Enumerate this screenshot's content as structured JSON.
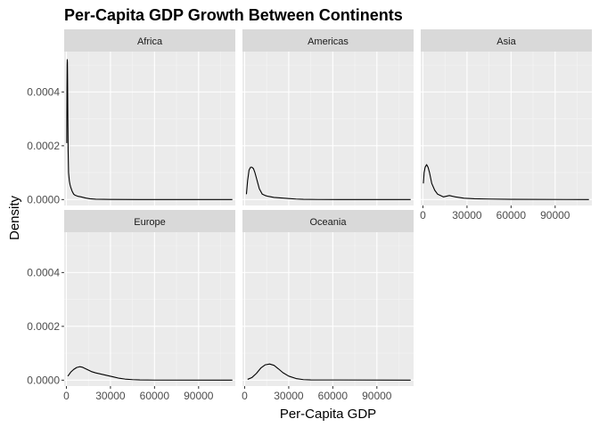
{
  "chart_data": {
    "type": "line",
    "title": "Per-Capita GDP Growth Between Continents",
    "xlabel": "Per-Capita GDP",
    "ylabel": "Density",
    "xlim": [
      -1500,
      115000
    ],
    "ylim": [
      -2.2e-05,
      0.00055
    ],
    "x_ticks": [
      0,
      30000,
      60000,
      90000
    ],
    "x_tick_labels": [
      "0",
      "30000",
      "60000",
      "90000"
    ],
    "y_ticks": [
      0,
      0.0002,
      0.0004
    ],
    "y_tick_labels": [
      "0.0000",
      "0.0002",
      "0.0004"
    ],
    "grid": true,
    "facets": [
      {
        "name": "Africa",
        "x": [
          241,
          300,
          400,
          500,
          600,
          700,
          800,
          900,
          1000,
          1200,
          1500,
          2000,
          2500,
          3000,
          4000,
          5000,
          6000,
          8000,
          10000,
          13000,
          16000,
          20000,
          30000,
          50000,
          113000
        ],
        "y": [
          0.00021,
          0.0003,
          0.00042,
          0.0005,
          0.00052,
          0.00051,
          0.00046,
          0.00038,
          0.0003,
          0.00018,
          0.0001,
          7e-05,
          5.5e-05,
          4.5e-05,
          3e-05,
          2e-05,
          1.6e-05,
          1.2e-05,
          1e-05,
          6e-06,
          3e-06,
          1.5e-06,
          5e-07,
          1e-07,
          0.0
        ]
      },
      {
        "name": "Americas",
        "x": [
          1200,
          2000,
          3000,
          4000,
          5000,
          6000,
          7000,
          8000,
          9000,
          10000,
          12000,
          14000,
          16000,
          20000,
          25000,
          30000,
          35000,
          40000,
          50000,
          113000
        ],
        "y": [
          2e-05,
          7e-05,
          0.00011,
          0.00012,
          0.00012,
          0.000115,
          0.0001,
          8e-05,
          6e-05,
          4e-05,
          2e-05,
          1.5e-05,
          1.2e-05,
          8e-06,
          6e-06,
          4e-06,
          2e-06,
          1e-06,
          3e-07,
          0.0
        ]
      },
      {
        "name": "Asia",
        "x": [
          300,
          800,
          1500,
          2500,
          3500,
          4500,
          6000,
          8000,
          10000,
          14000,
          18000,
          22000,
          28000,
          35000,
          45000,
          60000,
          113000
        ],
        "y": [
          6e-05,
          0.0001,
          0.00012,
          0.00013,
          0.00012,
          0.0001,
          6e-05,
          3.5e-05,
          2e-05,
          1e-05,
          1.5e-05,
          1e-05,
          5e-06,
          3e-06,
          2e-06,
          1e-06,
          0.0
        ]
      },
      {
        "name": "Europe",
        "x": [
          1000,
          3000,
          5000,
          7000,
          9000,
          11000,
          14000,
          17000,
          20000,
          24000,
          28000,
          32000,
          36000,
          40000,
          45000,
          50000,
          60000,
          113000
        ],
        "y": [
          1.5e-05,
          3e-05,
          4e-05,
          4.7e-05,
          5e-05,
          4.8e-05,
          4e-05,
          3.2e-05,
          2.7e-05,
          2.2e-05,
          1.7e-05,
          1.2e-05,
          7e-06,
          4e-06,
          2e-06,
          1e-06,
          3e-07,
          0.0
        ]
      },
      {
        "name": "Oceania",
        "x": [
          2000,
          5000,
          8000,
          11000,
          14000,
          17000,
          20000,
          23000,
          26000,
          30000,
          35000,
          40000,
          45000,
          113000
        ],
        "y": [
          3e-06,
          1e-05,
          2.5e-05,
          4.5e-05,
          5.7e-05,
          6e-05,
          5.5e-05,
          4.2e-05,
          2.8e-05,
          1.5e-05,
          6e-06,
          2e-06,
          1e-06,
          0.0
        ]
      }
    ]
  }
}
